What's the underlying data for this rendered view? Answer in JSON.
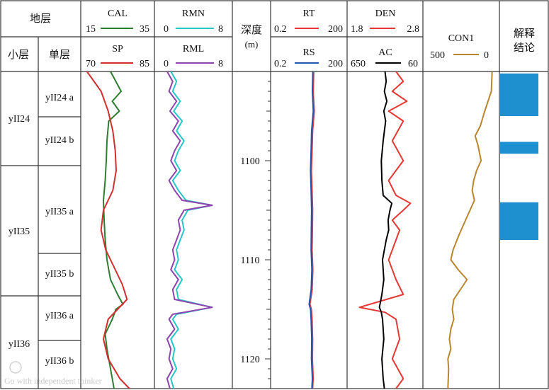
{
  "header": {
    "formation": "地层",
    "sublayer": "小层",
    "unit": "单层",
    "depth_title": "深度",
    "depth_unit": "(m)",
    "conclusion_line1": "解释",
    "conclusion_line2": "结论"
  },
  "curves": {
    "cal": {
      "name": "CAL",
      "min": "15",
      "max": "35",
      "color": "#2e7d32"
    },
    "sp": {
      "name": "SP",
      "min": "70",
      "max": "85",
      "color": "#d32f2f"
    },
    "rmn": {
      "name": "RMN",
      "min": "0",
      "max": "8",
      "color": "#26c6c6"
    },
    "rml": {
      "name": "RML",
      "min": "0",
      "max": "8",
      "color": "#8e44ad"
    },
    "rt": {
      "name": "RT",
      "min": "0.2",
      "max": "200",
      "color": "#e53935"
    },
    "rs": {
      "name": "RS",
      "min": "0.2",
      "max": "200",
      "color": "#1e56b0"
    },
    "den": {
      "name": "DEN",
      "min": "1.8",
      "max": "2.8",
      "color": "#e53935"
    },
    "ac": {
      "name": "AC",
      "min": "650",
      "max": "60",
      "color": "#000000"
    },
    "con1": {
      "name": "CON1",
      "min": "500",
      "max": "0",
      "color": "#b8862e"
    }
  },
  "zones": [
    {
      "name": "yII24",
      "units": [
        "yII24 a",
        "yII24 b"
      ]
    },
    {
      "name": "yII35",
      "units": [
        "yII35 a",
        "yII35 b"
      ]
    },
    {
      "name": "yII36",
      "units": [
        "yII36 a",
        "yII36 b"
      ]
    }
  ],
  "watermark": "Go with independent thinker",
  "chart_data": {
    "type": "line",
    "title": "",
    "depth_axis": {
      "label": "深度 (m)",
      "range": [
        1091,
        1123
      ],
      "ticks": [
        1100,
        1110,
        1120
      ]
    },
    "interpretation_color": "#1e90d0",
    "interpretation_intervals": [
      [
        1091.2,
        1095.5
      ],
      [
        1098.1,
        1099.3
      ],
      [
        1104.2,
        1108.0
      ]
    ],
    "tracks": [
      {
        "track": "CAL/SP",
        "series": [
          {
            "name": "CAL",
            "color": "#2e7d32",
            "depth": [
              1091,
              1092,
              1093,
              1094,
              1095,
              1096,
              1098,
              1100,
              1102,
              1104,
              1106,
              1108,
              1110,
              1112,
              1113.5,
              1114.5,
              1115,
              1116,
              1117.5,
              1119,
              1121,
              1123
            ],
            "values": [
              23.0,
              24.5,
              26.0,
              23.5,
              25.5,
              22.5,
              22.0,
              21.8,
              21.5,
              21.0,
              21.2,
              21.5,
              22.0,
              23.0,
              25.0,
              26.5,
              24.5,
              23.5,
              21.5,
              22.0,
              23.0,
              24.0
            ]
          },
          {
            "name": "SP",
            "color": "#d32f2f",
            "depth": [
              1091,
              1092,
              1093,
              1095,
              1097,
              1099,
              1101,
              1103,
              1105,
              1107,
              1109,
              1111,
              1112.5,
              1114,
              1115,
              1116,
              1118,
              1120,
              1122,
              1123
            ],
            "values": [
              71.0,
              72.5,
              74.0,
              75.5,
              76.5,
              77.0,
              77.2,
              76.5,
              74.5,
              74.0,
              75.0,
              77.0,
              78.5,
              79.5,
              77.5,
              75.5,
              74.5,
              75.5,
              78.0,
              80.0
            ]
          }
        ]
      },
      {
        "track": "RMN/RML",
        "series": [
          {
            "name": "RMN",
            "color": "#26c6c6",
            "depth": [
              1091,
              1092,
              1093,
              1094,
              1095,
              1096,
              1097,
              1098,
              1099,
              1100,
              1101,
              1102,
              1103,
              1104,
              1104.5,
              1105,
              1106,
              1107,
              1108,
              1109,
              1110,
              1111,
              1112,
              1113,
              1114,
              1114.8,
              1115.5,
              1116,
              1117,
              1118,
              1119,
              1120,
              1121,
              1122,
              1123
            ],
            "values": [
              1.6,
              2.2,
              1.8,
              2.6,
              1.9,
              2.8,
              2.2,
              3.0,
              2.4,
              2.0,
              2.6,
              1.8,
              2.4,
              3.2,
              6.0,
              3.4,
              2.8,
              3.0,
              2.6,
              2.2,
              2.4,
              2.0,
              2.8,
              2.2,
              2.4,
              6.0,
              2.2,
              1.8,
              2.4,
              1.6,
              2.0,
              1.8,
              2.2,
              1.6,
              1.9
            ]
          },
          {
            "name": "RML",
            "color": "#8e44ad",
            "depth": [
              1091,
              1092,
              1093,
              1094,
              1095,
              1096,
              1097,
              1098,
              1099,
              1100,
              1101,
              1102,
              1103,
              1104,
              1104.5,
              1105,
              1106,
              1107,
              1108,
              1109,
              1110,
              1111,
              1112,
              1113,
              1114,
              1114.8,
              1115.5,
              1116,
              1117,
              1118,
              1119,
              1120,
              1121,
              1122,
              1123
            ],
            "values": [
              1.2,
              1.8,
              1.4,
              2.2,
              1.5,
              2.4,
              1.8,
              2.6,
              2.0,
              1.6,
              2.2,
              1.4,
              2.0,
              2.8,
              6.0,
              3.0,
              2.4,
              2.6,
              2.2,
              1.8,
              2.0,
              1.6,
              2.4,
              1.8,
              2.0,
              6.0,
              1.8,
              1.4,
              2.0,
              1.2,
              1.6,
              1.4,
              1.8,
              1.2,
              1.5
            ]
          }
        ]
      },
      {
        "track": "RT/RS",
        "series": [
          {
            "name": "RT",
            "color": "#e53935",
            "depth": [
              1091,
              1093,
              1095,
              1097,
              1099,
              1101,
              1103,
              1105,
              1107,
              1109,
              1111,
              1113,
              1114.5,
              1115,
              1116,
              1118,
              1120,
              1122,
              1123
            ],
            "values": [
              10.0,
              9.5,
              10.5,
              9.0,
              8.5,
              8.0,
              8.5,
              9.0,
              8.8,
              8.5,
              9.2,
              8.6,
              7.0,
              8.0,
              8.5,
              9.0,
              8.8,
              9.5,
              9.0
            ]
          },
          {
            "name": "RS",
            "color": "#1e56b0",
            "depth": [
              1091,
              1093,
              1095,
              1097,
              1099,
              1101,
              1103,
              1105,
              1107,
              1109,
              1111,
              1113,
              1114.5,
              1115,
              1116,
              1118,
              1120,
              1122,
              1123
            ],
            "values": [
              9.2,
              8.8,
              9.6,
              8.2,
              7.8,
              7.4,
              7.8,
              8.2,
              8.0,
              7.8,
              8.4,
              7.9,
              6.5,
              7.4,
              7.8,
              8.3,
              8.1,
              8.8,
              8.4
            ]
          }
        ]
      },
      {
        "track": "DEN/AC",
        "series": [
          {
            "name": "DEN",
            "color": "#e53935",
            "depth": [
              1091,
              1092,
              1093,
              1094,
              1095,
              1096,
              1098,
              1100,
              1102,
              1103.5,
              1104.3,
              1105,
              1106,
              1107,
              1108,
              1110,
              1112,
              1113.5,
              1114.8,
              1115.3,
              1116,
              1118,
              1120,
              1122,
              1123
            ],
            "values": [
              2.45,
              2.55,
              2.4,
              2.6,
              2.35,
              2.55,
              2.4,
              2.55,
              2.35,
              2.45,
              2.65,
              2.55,
              2.4,
              2.5,
              2.45,
              2.35,
              2.45,
              2.55,
              1.95,
              2.3,
              2.45,
              2.5,
              2.4,
              2.55,
              2.45
            ]
          },
          {
            "name": "AC",
            "color": "#000000",
            "depth": [
              1091,
              1092,
              1093,
              1094,
              1095,
              1096,
              1098,
              1100,
              1102,
              1103.5,
              1104.3,
              1105,
              1106,
              1107,
              1108,
              1110,
              1112,
              1113.5,
              1114.8,
              1115.3,
              1116,
              1118,
              1120,
              1122,
              1123
            ],
            "values": [
              355,
              345,
              360,
              340,
              365,
              350,
              370,
              385,
              380,
              370,
              300,
              315,
              330,
              325,
              345,
              375,
              365,
              380,
              400,
              385,
              375,
              365,
              380,
              370,
              360
            ]
          }
        ]
      },
      {
        "track": "CON1",
        "series": [
          {
            "name": "CON1",
            "color": "#b8862e",
            "depth": [
              1091,
              1093,
              1095,
              1096.5,
              1097.5,
              1098.5,
              1100,
              1101,
              1102,
              1103,
              1104,
              1105,
              1106,
              1107.5,
              1109,
              1110,
              1111,
              1112,
              1113,
              1114,
              1115,
              1116,
              1117,
              1118,
              1119,
              1120,
              1121,
              1123
            ],
            "values": [
              40,
              45,
              90,
              120,
              155,
              135,
              115,
              145,
              165,
              175,
              160,
              190,
              220,
              265,
              305,
              320,
              270,
              210,
              255,
              300,
              310,
              300,
              320,
              330,
              320,
              340,
              335,
              340
            ]
          }
        ]
      }
    ]
  }
}
